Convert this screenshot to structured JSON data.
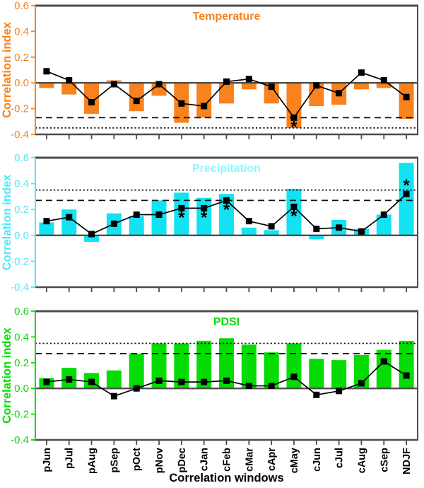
{
  "figure": {
    "x_axis_title": "Correlation windows",
    "y_axis_title": "Correlation index",
    "frame_color": "#4d4d4d",
    "line_series_color": "#000000",
    "significance_line_color": "#111111"
  },
  "chart_data": [
    {
      "type": "bar",
      "panel": "temperature",
      "title": "Temperature",
      "title_color": "#f8821e",
      "bar_color": "#f8821e",
      "axis_color": "#f8821e",
      "ylabel": "Correlation index",
      "ylim": [
        -0.4,
        0.6
      ],
      "yticks": [
        0.6,
        0.4,
        0.2,
        0.0,
        -0.2,
        -0.4
      ],
      "grid": false,
      "sig_dashed": -0.27,
      "sig_dotted": -0.35,
      "categories": [
        "pJun",
        "pJul",
        "pAug",
        "pSep",
        "pOct",
        "pNov",
        "pDec",
        "cJan",
        "cFeb",
        "cMar",
        "cApr",
        "cMay",
        "cJun",
        "cJul",
        "cAug",
        "cSep",
        "NDJF"
      ],
      "series": [
        {
          "name": "bars",
          "type": "bar",
          "values": [
            -0.04,
            -0.09,
            -0.24,
            0.02,
            -0.22,
            -0.1,
            -0.31,
            -0.27,
            -0.16,
            -0.05,
            -0.16,
            -0.35,
            -0.18,
            -0.17,
            -0.05,
            -0.04,
            -0.28
          ]
        },
        {
          "name": "line",
          "type": "line",
          "values": [
            0.09,
            0.02,
            -0.15,
            -0.01,
            -0.14,
            -0.01,
            -0.16,
            -0.18,
            0.01,
            0.03,
            -0.03,
            -0.27,
            -0.02,
            -0.08,
            0.08,
            0.02,
            -0.11
          ]
        }
      ],
      "asterisks": [
        {
          "category": "cMay",
          "placement": "below"
        }
      ]
    },
    {
      "type": "bar",
      "panel": "precipitation",
      "title": "Precipitation",
      "title_color": "#8df5ff",
      "bar_color": "#12e2f2",
      "axis_color": "#4fe9f7",
      "ylabel": "Correlation index",
      "ylim": [
        -0.4,
        0.6
      ],
      "yticks": [
        0.6,
        0.4,
        0.2,
        0.0,
        -0.2,
        -0.4
      ],
      "grid": false,
      "sig_dashed": 0.27,
      "sig_dotted": 0.35,
      "categories": [
        "pJun",
        "pJul",
        "pAug",
        "pSep",
        "pOct",
        "pNov",
        "pDec",
        "cJan",
        "cFeb",
        "cMar",
        "cApr",
        "cMay",
        "cJun",
        "cJul",
        "cAug",
        "cSep",
        "NDJF"
      ],
      "series": [
        {
          "name": "bars",
          "type": "bar",
          "values": [
            0.1,
            0.2,
            -0.05,
            0.17,
            0.15,
            0.27,
            0.33,
            0.29,
            0.32,
            0.06,
            0.04,
            0.36,
            -0.03,
            0.12,
            0.05,
            0.16,
            0.56
          ]
        },
        {
          "name": "line",
          "type": "line",
          "values": [
            0.11,
            0.14,
            0.01,
            0.09,
            0.16,
            0.16,
            0.21,
            0.21,
            0.27,
            0.11,
            0.07,
            0.22,
            0.05,
            0.06,
            0.03,
            0.16,
            0.32
          ]
        }
      ],
      "asterisks": [
        {
          "category": "pDec",
          "placement": "below"
        },
        {
          "category": "cJan",
          "placement": "below"
        },
        {
          "category": "cFeb",
          "placement": "below"
        },
        {
          "category": "cMay",
          "placement": "below"
        },
        {
          "category": "NDJF",
          "placement": "above"
        }
      ]
    },
    {
      "type": "bar",
      "panel": "pdsi",
      "title": "PDSI",
      "title_color": "#04dc04",
      "bar_color": "#04dc04",
      "axis_color": "#04dc04",
      "ylabel": "Correlation index",
      "ylim": [
        -0.4,
        0.6
      ],
      "yticks": [
        0.6,
        0.4,
        0.2,
        0.0,
        -0.2,
        -0.4
      ],
      "grid": false,
      "sig_dashed": 0.27,
      "sig_dotted": 0.35,
      "categories": [
        "pJun",
        "pJul",
        "pAug",
        "pSep",
        "pOct",
        "pNov",
        "pDec",
        "cJan",
        "cFeb",
        "cMar",
        "cApr",
        "cMay",
        "cJun",
        "cJul",
        "cAug",
        "cSep",
        "NDJF"
      ],
      "series": [
        {
          "name": "bars",
          "type": "bar",
          "values": [
            0.08,
            0.16,
            0.12,
            0.14,
            0.27,
            0.35,
            0.35,
            0.37,
            0.39,
            0.34,
            0.28,
            0.35,
            0.23,
            0.22,
            0.26,
            0.3,
            0.37
          ]
        },
        {
          "name": "line",
          "type": "line",
          "values": [
            0.05,
            0.07,
            0.05,
            -0.06,
            0.0,
            0.06,
            0.05,
            0.05,
            0.06,
            0.02,
            0.02,
            0.09,
            -0.05,
            -0.02,
            0.04,
            0.21,
            0.1
          ]
        }
      ],
      "asterisks": []
    }
  ]
}
